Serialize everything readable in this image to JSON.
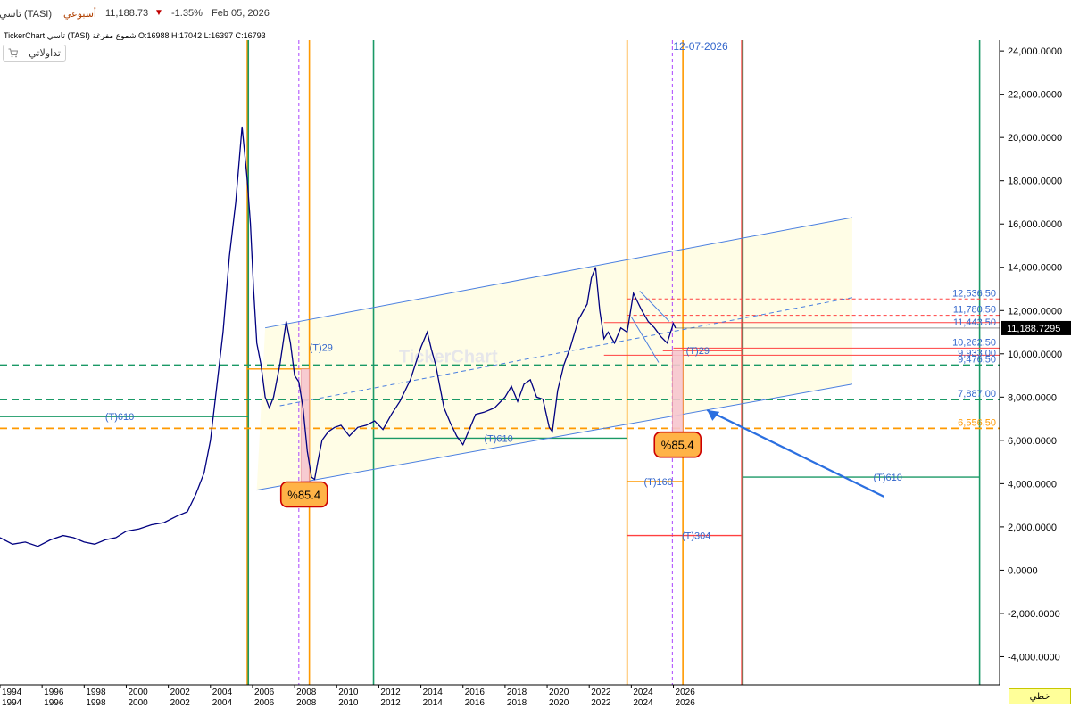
{
  "header": {
    "symbol": "تاسي (TASI)",
    "period": "أسبوعي",
    "price": "11,188.73",
    "change_pct": "-1.35%",
    "date": "Feb 05, 2026",
    "change_color": "#c00000"
  },
  "ohlc_line": {
    "brand": "TickerChart",
    "name_text": "تاسي (TASI) شموع مفرغة",
    "open": "O:16988",
    "high": "H:17042",
    "low": "L:16397",
    "close": "C:16793"
  },
  "toolbar": {
    "tadawul_label": "تداولاتي",
    "tadawul_icon": "cart-icon"
  },
  "footer": {
    "line_mode_label": "خطي"
  },
  "watermark": "TickerChart",
  "chart_data": {
    "type": "line",
    "x_axis": {
      "ticks": [
        "1994",
        "1996",
        "1998",
        "2000",
        "2002",
        "2004",
        "2006",
        "2008",
        "2010",
        "2012",
        "2014",
        "2016",
        "2018",
        "2020",
        "2022",
        "2024",
        "2026"
      ],
      "range": [
        1994.0,
        2041.5
      ]
    },
    "y_axis": {
      "range": [
        -5300,
        24500
      ],
      "ticks": [
        "-4,000.0000",
        "-2,000.0000",
        "0.0000",
        "2,000.0000",
        "4,000.0000",
        "6,000.0000",
        "8,000.0000",
        "10,000.0000",
        "12,000.0000",
        "14,000.0000",
        "16,000.0000",
        "18,000.0000",
        "20,000.0000",
        "22,000.0000",
        "24,000.0000"
      ],
      "tick_values": [
        -4000,
        -2000,
        0,
        2000,
        4000,
        6000,
        8000,
        10000,
        12000,
        14000,
        16000,
        18000,
        20000,
        22000,
        24000
      ],
      "current_price_label": "11,188.7295",
      "current_price": 11188.73
    },
    "series": [
      {
        "x": [
          1994.0,
          1994.6,
          1995.2,
          1995.8,
          1996.4,
          1997.0,
          1997.5,
          1998.0,
          1998.5,
          1999.0,
          1999.5,
          2000.0,
          2000.6,
          2001.2,
          2001.8,
          2002.4,
          2002.9,
          2003.3,
          2003.7,
          2004.0,
          2004.3,
          2004.6,
          2004.9,
          2005.2,
          2005.5,
          2005.75,
          2005.9,
          2006.05,
          2006.2,
          2006.4,
          2006.6,
          2006.8,
          2007.0,
          2007.3,
          2007.6,
          2007.8,
          2008.0,
          2008.2,
          2008.4,
          2008.6,
          2008.8,
          2008.95,
          2009.1,
          2009.3,
          2009.6,
          2009.9,
          2010.2,
          2010.6,
          2011.0,
          2011.4,
          2011.8,
          2012.2,
          2012.6,
          2013.0,
          2013.5,
          2014.0,
          2014.3,
          2014.5,
          2014.7,
          2014.9,
          2015.1,
          2015.4,
          2015.7,
          2016.0,
          2016.3,
          2016.6,
          2017.0,
          2017.5,
          2018.0,
          2018.3,
          2018.6,
          2018.9,
          2019.2,
          2019.5,
          2019.8,
          2020.1,
          2020.25,
          2020.5,
          2020.8,
          2021.1,
          2021.5,
          2021.9,
          2022.1,
          2022.3,
          2022.5,
          2022.7,
          2022.9,
          2023.2,
          2023.5,
          2023.8,
          2024.1,
          2024.3,
          2024.5,
          2024.8,
          2025.1,
          2025.4,
          2025.7,
          2026.0,
          2026.1
        ],
        "y": [
          1500,
          1200,
          1300,
          1100,
          1400,
          1600,
          1500,
          1300,
          1200,
          1400,
          1500,
          1800,
          1900,
          2100,
          2200,
          2500,
          2700,
          3500,
          4500,
          6000,
          8500,
          11000,
          14500,
          17000,
          20500,
          18000,
          16000,
          13000,
          10500,
          9500,
          8000,
          7500,
          8000,
          9500,
          11500,
          10500,
          9000,
          8700,
          7500,
          5500,
          4300,
          4200,
          5000,
          6000,
          6400,
          6600,
          6700,
          6200,
          6600,
          6700,
          6900,
          6500,
          7200,
          7800,
          8800,
          10300,
          11000,
          10200,
          9500,
          8500,
          7500,
          6800,
          6200,
          5800,
          6500,
          7200,
          7300,
          7500,
          8000,
          8500,
          7800,
          8600,
          8800,
          8000,
          7900,
          6600,
          6400,
          8300,
          9500,
          10300,
          11600,
          12300,
          13500,
          14000,
          12000,
          10700,
          11000,
          10500,
          11200,
          11000,
          12800,
          12400,
          12000,
          11500,
          11200,
          10800,
          10500,
          11400,
          11188.73
        ],
        "color": "#000080"
      }
    ],
    "horizontal_levels": [
      {
        "label": "12,536.50",
        "value": 12536.5,
        "color": "#ff4040",
        "style": "dashed"
      },
      {
        "label": "11,780.50",
        "value": 11780.5,
        "color": "#ff4040",
        "style": "dashed"
      },
      {
        "label": "11,443.50",
        "value": 11443.5,
        "color": "#ff4040",
        "style": "solid"
      },
      {
        "label": "10,262.50",
        "value": 10262.5,
        "color": "#ff4040",
        "style": "solid"
      },
      {
        "label": "9,933.00",
        "value": 9933.0,
        "color": "#ff4040",
        "style": "solid"
      },
      {
        "label": "9,476.50",
        "value": 9476.5,
        "color": "#1a9966",
        "style": "dashed"
      },
      {
        "label": "7,887.00",
        "value": 7887.0,
        "color": "#1a9966",
        "style": "dashed"
      },
      {
        "label": "6,556.50",
        "value": 6556.5,
        "color": "#ff9900",
        "style": "dashed"
      }
    ],
    "channel": {
      "upper": [
        [
          2006.6,
          11200
        ],
        [
          2034.5,
          16300
        ]
      ],
      "lower": [
        [
          2006.2,
          3700
        ],
        [
          2034.5,
          8600
        ]
      ],
      "middle": [
        [
          2007.3,
          7600
        ],
        [
          2034.5,
          12600
        ]
      ],
      "fill_color": "#fffde6"
    },
    "vertical_lines": [
      {
        "x": 2005.75,
        "color": "#ff9900"
      },
      {
        "x": 2005.8,
        "color": "#1a9966"
      },
      {
        "x": 2008.7,
        "color": "#ff9900"
      },
      {
        "x": 2011.75,
        "color": "#1a9966"
      },
      {
        "x": 2023.8,
        "color": "#ff9900"
      },
      {
        "x": 2026.45,
        "color": "#ff9900"
      },
      {
        "x": 2029.25,
        "color": "#ff4040"
      },
      {
        "x": 2029.3,
        "color": "#1a9966"
      },
      {
        "x": 2040.55,
        "color": "#1a9966"
      }
    ],
    "dashed_vertical_lines": [
      {
        "x": 2008.2,
        "color": "#aa44ff"
      },
      {
        "x": 2025.95,
        "color": "#aa44ff"
      }
    ],
    "date_marker_label": "12-07-2026",
    "date_marker_x": 2025.95,
    "fib_labels": [
      {
        "label": "(T)610",
        "x": 1999.0,
        "y": 7100
      },
      {
        "label": "(T)29",
        "x": 2008.7,
        "y": 10300
      },
      {
        "label": "(T)610",
        "x": 2017.0,
        "y": 6100
      },
      {
        "label": "(T)29",
        "x": 2026.6,
        "y": 10150
      },
      {
        "label": "(T)160",
        "x": 2024.6,
        "y": 4100
      },
      {
        "label": "(T)304",
        "x": 2026.4,
        "y": 1600
      },
      {
        "label": "(T)610",
        "x": 2035.5,
        "y": 4300
      }
    ],
    "percent_labels": [
      "%85.4",
      "%85.4"
    ]
  }
}
